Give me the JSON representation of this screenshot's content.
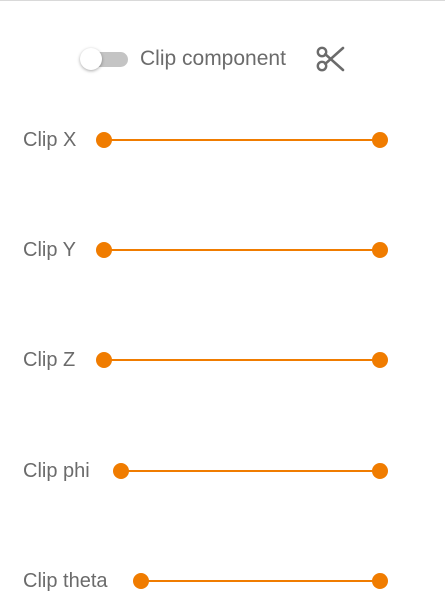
{
  "header": {
    "toggle_on": false,
    "label": "Clip component",
    "icon": "scissors-icon"
  },
  "colors": {
    "accent": "#f07c00",
    "text": "#6b6b6b",
    "toggle_track": "#c4c4c4"
  },
  "sliders": [
    {
      "label": "Clip X",
      "min_value": 0,
      "max_value": 1
    },
    {
      "label": "Clip Y",
      "min_value": 0,
      "max_value": 1
    },
    {
      "label": "Clip Z",
      "min_value": 0,
      "max_value": 1
    },
    {
      "label": "Clip phi",
      "min_value": 0,
      "max_value": 1
    },
    {
      "label": "Clip theta",
      "min_value": 0,
      "max_value": 1
    }
  ]
}
